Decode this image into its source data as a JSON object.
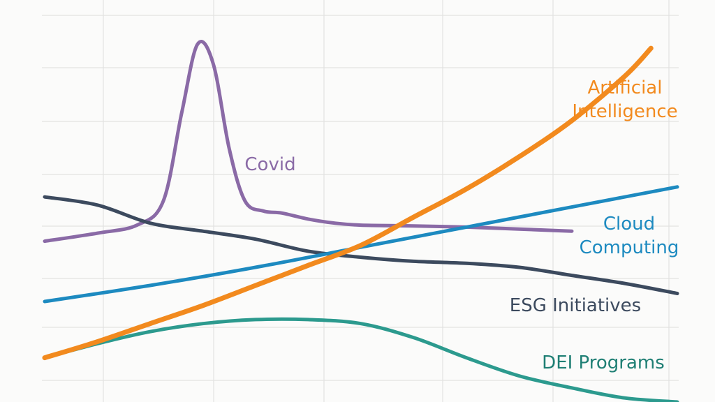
{
  "chart_data": {
    "type": "line",
    "title": "",
    "xlabel": "",
    "ylabel": "",
    "grid": true,
    "legend": "inline labels",
    "xlim": [
      0,
      24
    ],
    "ylim": [
      0,
      100
    ],
    "series": [
      {
        "key": "ai",
        "name": "Artificial Intelligence",
        "label_lines": [
          "Artificial",
          "Intelligence"
        ],
        "color": "#f28a1e",
        "x": [
          0,
          2,
          4,
          6,
          8,
          10,
          12,
          14,
          16,
          18,
          20,
          22,
          23
        ],
        "y": [
          11,
          15,
          19.5,
          24,
          29,
          34,
          39,
          46,
          53,
          61,
          70,
          81,
          88
        ]
      },
      {
        "key": "covid",
        "name": "Covid",
        "label_lines": [
          "Covid"
        ],
        "color": "#8a6aa6",
        "x": [
          0,
          2,
          3.5,
          4.5,
          5.2,
          5.8,
          6.4,
          7,
          7.6,
          8.3,
          9,
          10,
          11,
          12,
          14,
          16,
          18,
          20
        ],
        "y": [
          40,
          42,
          44,
          50,
          72,
          89,
          84,
          63,
          50,
          47.5,
          47,
          45.5,
          44.5,
          44,
          43.8,
          43.5,
          43,
          42.5
        ]
      },
      {
        "key": "cloud",
        "name": "Cloud Computing",
        "label_lines": [
          "Cloud",
          "Computing"
        ],
        "color": "#1d8ac0",
        "x": [
          0,
          4,
          8,
          12,
          16,
          20,
          24
        ],
        "y": [
          25,
          29,
          33.5,
          38.5,
          43.5,
          48.5,
          53.5
        ]
      },
      {
        "key": "esg",
        "name": "ESG Initiatives",
        "label_lines": [
          "ESG Initiatives"
        ],
        "color": "#3c4a5e",
        "x": [
          0,
          2,
          4,
          6,
          8,
          10,
          12,
          14,
          16,
          18,
          20,
          22,
          24
        ],
        "y": [
          51,
          49,
          44.5,
          42.5,
          40.5,
          37.5,
          36,
          35,
          34.5,
          33.5,
          31.5,
          29.5,
          27
        ]
      },
      {
        "key": "dei",
        "name": "DEI Programs",
        "label_lines": [
          "DEI Programs"
        ],
        "color": "#2c9a8e",
        "x": [
          0,
          2,
          4,
          6,
          8,
          10,
          12,
          14,
          16,
          18,
          20,
          22,
          24
        ],
        "y": [
          11,
          14.5,
          17.5,
          19.5,
          20.5,
          20.5,
          19.5,
          16,
          11,
          6.5,
          3.5,
          1,
          0
        ]
      }
    ]
  }
}
